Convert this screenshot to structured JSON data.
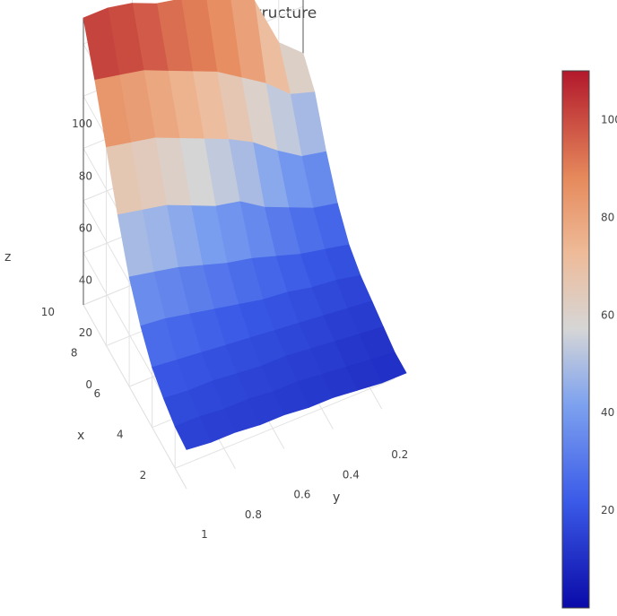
{
  "chart_data": {
    "type": "surface",
    "title": "Volatility Term Structure",
    "xlabel": "x",
    "ylabel": "y",
    "zlabel": "z",
    "x_ticks": [
      "2",
      "4",
      "6",
      "8",
      "10"
    ],
    "y_ticks": [
      "0.2",
      "0.4",
      "0.6",
      "0.8",
      "1"
    ],
    "z_ticks": [
      "0",
      "20",
      "40",
      "60",
      "80",
      "100"
    ],
    "colorbar_ticks": [
      "20",
      "40",
      "60",
      "80",
      "100"
    ],
    "xlim": [
      1,
      10
    ],
    "ylim": [
      0.1,
      1
    ],
    "zlim": [
      0,
      110
    ],
    "colorscale": [
      [
        0.0,
        "#0a0aa8"
      ],
      [
        0.2,
        "#3b5be8"
      ],
      [
        0.38,
        "#7ea2ef"
      ],
      [
        0.52,
        "#d6d6d6"
      ],
      [
        0.66,
        "#eebb99"
      ],
      [
        0.8,
        "#e68a5c"
      ],
      [
        1.0,
        "#b2182b"
      ]
    ],
    "x": [
      1,
      2,
      3,
      4,
      5,
      6,
      7,
      8,
      9,
      10
    ],
    "y": [
      0.1,
      0.2,
      0.3,
      0.4,
      0.5,
      0.6,
      0.7,
      0.8,
      0.9,
      1.0
    ],
    "z": [
      [
        10,
        10,
        12,
        14,
        16,
        20,
        28,
        40,
        55,
        62
      ],
      [
        10,
        11,
        13,
        15,
        18,
        22,
        30,
        42,
        58,
        70
      ],
      [
        11,
        12,
        14,
        16,
        19,
        24,
        34,
        48,
        66,
        90
      ],
      [
        12,
        13,
        15,
        17,
        21,
        27,
        38,
        55,
        72,
        96
      ],
      [
        12,
        14,
        16,
        18,
        22,
        30,
        44,
        60,
        78,
        100
      ],
      [
        13,
        14,
        16,
        19,
        24,
        32,
        46,
        64,
        82,
        102
      ],
      [
        13,
        15,
        17,
        20,
        26,
        35,
        50,
        68,
        86,
        104
      ],
      [
        14,
        15,
        18,
        21,
        28,
        38,
        54,
        72,
        90,
        108
      ],
      [
        14,
        16,
        18,
        22,
        30,
        40,
        56,
        74,
        92,
        110
      ],
      [
        15,
        16,
        19,
        23,
        31,
        42,
        58,
        76,
        94,
        110
      ]
    ]
  }
}
